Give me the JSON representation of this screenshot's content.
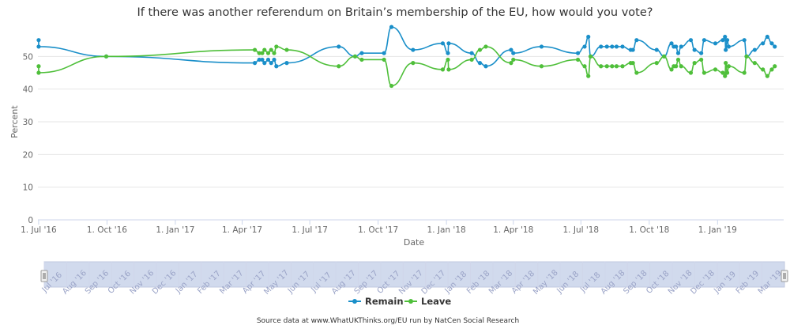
{
  "chart_data": {
    "type": "line",
    "title": "If there was another referendum on Britain’s membership of the EU, how would you vote?",
    "xlabel": "Date",
    "ylabel": "Percent",
    "ylim": [
      0,
      60
    ],
    "yticks": [
      0,
      10,
      20,
      30,
      40,
      50
    ],
    "xlim": [
      "2016-06-30",
      "2019-03-31"
    ],
    "xticks": [
      {
        "date": "2016-07-01",
        "label": "1. Jul '16"
      },
      {
        "date": "2016-10-01",
        "label": "1. Oct '16"
      },
      {
        "date": "2017-01-01",
        "label": "1. Jan '17"
      },
      {
        "date": "2017-04-01",
        "label": "1. Apr '17"
      },
      {
        "date": "2017-07-01",
        "label": "1. Jul '17"
      },
      {
        "date": "2017-10-01",
        "label": "1. Oct '17"
      },
      {
        "date": "2018-01-01",
        "label": "1. Jan '18"
      },
      {
        "date": "2018-04-01",
        "label": "1. Apr '18"
      },
      {
        "date": "2018-07-01",
        "label": "1. Jul '18"
      },
      {
        "date": "2018-10-01",
        "label": "1. Oct '18"
      },
      {
        "date": "2019-01-01",
        "label": "1. Jan '19"
      }
    ],
    "grid": true,
    "legend_position": "bottom",
    "series": [
      {
        "name": "Remain",
        "color": "#1a8fc9",
        "points": [
          [
            "2016-07-01",
            55
          ],
          [
            "2016-07-01",
            53
          ],
          [
            "2016-09-30",
            50
          ],
          [
            "2017-04-18",
            48
          ],
          [
            "2017-04-24",
            49
          ],
          [
            "2017-04-28",
            49
          ],
          [
            "2017-05-01",
            48
          ],
          [
            "2017-05-06",
            49
          ],
          [
            "2017-05-10",
            48
          ],
          [
            "2017-05-14",
            49
          ],
          [
            "2017-05-17",
            47
          ],
          [
            "2017-05-31",
            48
          ],
          [
            "2017-08-09",
            53
          ],
          [
            "2017-08-31",
            50
          ],
          [
            "2017-09-09",
            51
          ],
          [
            "2017-10-09",
            51
          ],
          [
            "2017-10-19",
            59
          ],
          [
            "2017-11-17",
            52
          ],
          [
            "2017-12-27",
            54
          ],
          [
            "2018-01-03",
            51
          ],
          [
            "2018-01-04",
            54
          ],
          [
            "2018-02-04",
            51
          ],
          [
            "2018-02-15",
            48
          ],
          [
            "2018-02-23",
            47
          ],
          [
            "2018-03-29",
            52
          ],
          [
            "2018-04-01",
            51
          ],
          [
            "2018-05-09",
            53
          ],
          [
            "2018-06-27",
            51
          ],
          [
            "2018-07-06",
            53
          ],
          [
            "2018-07-11",
            56
          ],
          [
            "2018-07-14",
            50
          ],
          [
            "2018-07-28",
            53
          ],
          [
            "2018-08-05",
            53
          ],
          [
            "2018-08-12",
            53
          ],
          [
            "2018-08-18",
            53
          ],
          [
            "2018-08-26",
            53
          ],
          [
            "2018-09-06",
            52
          ],
          [
            "2018-09-09",
            52
          ],
          [
            "2018-09-14",
            55
          ],
          [
            "2018-10-11",
            52
          ],
          [
            "2018-10-21",
            50
          ],
          [
            "2018-10-31",
            54
          ],
          [
            "2018-11-03",
            53
          ],
          [
            "2018-11-06",
            53
          ],
          [
            "2018-11-09",
            51
          ],
          [
            "2018-11-13",
            53
          ],
          [
            "2018-11-26",
            55
          ],
          [
            "2018-12-01",
            52
          ],
          [
            "2018-12-10",
            51
          ],
          [
            "2018-12-14",
            55
          ],
          [
            "2018-12-29",
            54
          ],
          [
            "2019-01-08",
            55
          ],
          [
            "2019-01-11",
            56
          ],
          [
            "2019-01-12",
            52
          ],
          [
            "2019-01-14",
            55
          ],
          [
            "2019-01-16",
            53
          ],
          [
            "2019-02-06",
            55
          ],
          [
            "2019-02-09",
            50
          ],
          [
            "2019-02-20",
            52
          ],
          [
            "2019-03-03",
            54
          ],
          [
            "2019-03-09",
            56
          ],
          [
            "2019-03-15",
            54
          ],
          [
            "2019-03-19",
            53
          ]
        ]
      },
      {
        "name": "Leave",
        "color": "#4fbf3a",
        "points": [
          [
            "2016-07-01",
            47
          ],
          [
            "2016-07-01",
            45
          ],
          [
            "2016-09-30",
            50
          ],
          [
            "2017-04-18",
            52
          ],
          [
            "2017-04-24",
            51
          ],
          [
            "2017-04-28",
            51
          ],
          [
            "2017-05-01",
            52
          ],
          [
            "2017-05-06",
            51
          ],
          [
            "2017-05-10",
            52
          ],
          [
            "2017-05-14",
            51
          ],
          [
            "2017-05-17",
            53
          ],
          [
            "2017-05-31",
            52
          ],
          [
            "2017-08-09",
            47
          ],
          [
            "2017-08-31",
            50
          ],
          [
            "2017-09-09",
            49
          ],
          [
            "2017-10-09",
            49
          ],
          [
            "2017-10-19",
            41
          ],
          [
            "2017-11-17",
            48
          ],
          [
            "2017-12-27",
            46
          ],
          [
            "2018-01-03",
            49
          ],
          [
            "2018-01-04",
            46
          ],
          [
            "2018-02-04",
            49
          ],
          [
            "2018-02-15",
            52
          ],
          [
            "2018-02-23",
            53
          ],
          [
            "2018-03-29",
            48
          ],
          [
            "2018-04-01",
            49
          ],
          [
            "2018-05-09",
            47
          ],
          [
            "2018-06-27",
            49
          ],
          [
            "2018-07-06",
            47
          ],
          [
            "2018-07-11",
            44
          ],
          [
            "2018-07-14",
            50
          ],
          [
            "2018-07-28",
            47
          ],
          [
            "2018-08-05",
            47
          ],
          [
            "2018-08-12",
            47
          ],
          [
            "2018-08-18",
            47
          ],
          [
            "2018-08-26",
            47
          ],
          [
            "2018-09-06",
            48
          ],
          [
            "2018-09-09",
            48
          ],
          [
            "2018-09-14",
            45
          ],
          [
            "2018-10-11",
            48
          ],
          [
            "2018-10-21",
            50
          ],
          [
            "2018-10-31",
            46
          ],
          [
            "2018-11-03",
            47
          ],
          [
            "2018-11-06",
            47
          ],
          [
            "2018-11-09",
            49
          ],
          [
            "2018-11-13",
            47
          ],
          [
            "2018-11-26",
            45
          ],
          [
            "2018-12-01",
            48
          ],
          [
            "2018-12-10",
            49
          ],
          [
            "2018-12-14",
            45
          ],
          [
            "2018-12-29",
            46
          ],
          [
            "2019-01-08",
            45
          ],
          [
            "2019-01-11",
            44
          ],
          [
            "2019-01-12",
            48
          ],
          [
            "2019-01-14",
            45
          ],
          [
            "2019-01-16",
            47
          ],
          [
            "2019-02-06",
            45
          ],
          [
            "2019-02-09",
            50
          ],
          [
            "2019-02-20",
            48
          ],
          [
            "2019-03-03",
            46
          ],
          [
            "2019-03-09",
            44
          ],
          [
            "2019-03-15",
            46
          ],
          [
            "2019-03-19",
            47
          ]
        ]
      }
    ],
    "navigator_labels": [
      "Jul '16",
      "Aug '16",
      "Sep '16",
      "Oct '16",
      "Nov '16",
      "Dec '16",
      "Jan '17",
      "Feb '17",
      "Mar '17",
      "Apr '17",
      "May '17",
      "Jun '17",
      "Jul '17",
      "Aug '17",
      "Sep '17",
      "Oct '17",
      "Nov '17",
      "Dec '17",
      "Jan '18",
      "Feb '18",
      "Mar '18",
      "Apr '18",
      "May '18",
      "Jun '18",
      "Jul '18",
      "Aug '18",
      "Sep '18",
      "Oct '18",
      "Nov '18",
      "Dec '18",
      "Jan '19",
      "Feb '19",
      "Mar '19"
    ]
  },
  "credits": "Source data at www.WhatUKThinks.org/EU run by NatCen Social Research"
}
